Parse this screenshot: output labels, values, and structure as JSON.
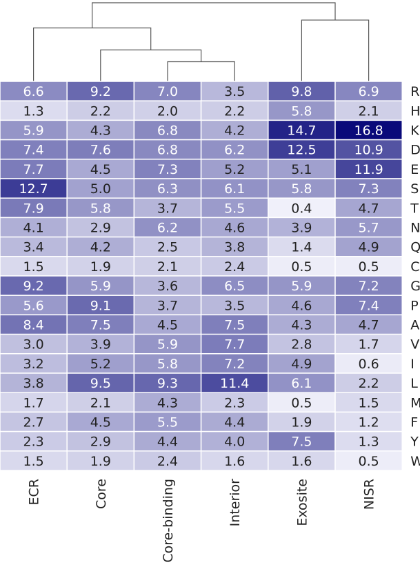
{
  "chart_data": {
    "type": "heatmap",
    "columns": [
      "ECR",
      "Core",
      "Core-binding",
      "Interior",
      "Exosite",
      "NISR"
    ],
    "rows": [
      "R",
      "H",
      "K",
      "D",
      "E",
      "S",
      "T",
      "N",
      "Q",
      "C",
      "G",
      "P",
      "A",
      "V",
      "I",
      "L",
      "M",
      "F",
      "Y",
      "W"
    ],
    "values": [
      [
        6.6,
        9.2,
        7.0,
        3.5,
        9.8,
        6.9
      ],
      [
        1.3,
        2.2,
        2.0,
        2.2,
        5.8,
        2.1
      ],
      [
        5.9,
        4.3,
        6.8,
        4.2,
        14.7,
        16.8
      ],
      [
        7.4,
        7.6,
        6.8,
        6.2,
        12.5,
        10.9
      ],
      [
        7.7,
        4.5,
        7.3,
        5.2,
        5.1,
        11.9
      ],
      [
        12.7,
        5.0,
        6.3,
        6.1,
        5.8,
        7.3
      ],
      [
        7.9,
        5.8,
        3.7,
        5.5,
        0.4,
        4.7
      ],
      [
        4.1,
        2.9,
        6.2,
        4.6,
        3.9,
        5.7
      ],
      [
        3.4,
        4.2,
        2.5,
        3.8,
        1.4,
        4.9
      ],
      [
        1.5,
        1.9,
        2.1,
        2.4,
        0.5,
        0.5
      ],
      [
        9.2,
        5.9,
        3.6,
        6.5,
        5.9,
        7.2
      ],
      [
        5.6,
        9.1,
        3.7,
        3.5,
        4.6,
        7.4
      ],
      [
        8.4,
        7.5,
        4.5,
        7.5,
        4.3,
        4.7
      ],
      [
        3.0,
        3.9,
        5.9,
        7.7,
        2.8,
        1.7
      ],
      [
        3.2,
        5.2,
        5.8,
        7.2,
        4.9,
        0.6
      ],
      [
        3.8,
        9.5,
        9.3,
        11.4,
        6.1,
        2.2
      ],
      [
        1.7,
        2.1,
        4.3,
        2.3,
        0.5,
        1.5
      ],
      [
        2.7,
        4.5,
        5.5,
        4.4,
        1.9,
        1.2
      ],
      [
        2.3,
        2.9,
        4.4,
        4.0,
        7.5,
        1.3
      ],
      [
        1.5,
        1.9,
        2.4,
        1.6,
        1.6,
        0.5
      ]
    ],
    "colormap": {
      "low": "#f0f0fa",
      "high": "#0a0a7a"
    },
    "value_range": [
      0.4,
      16.8
    ],
    "dendrogram": {
      "leaves": [
        "ECR",
        "Core",
        "Core-binding",
        "Interior",
        "Exosite",
        "NISR"
      ],
      "merges": [
        {
          "left": "Core-binding",
          "right": "Interior",
          "height": 0.25
        },
        {
          "left": "Core",
          "right": "Core-binding+Interior",
          "height": 0.4
        },
        {
          "left": "ECR",
          "right": "Core+Core-binding+Interior",
          "height": 0.68
        },
        {
          "left": "Exosite",
          "right": "NISR",
          "height": 0.78
        },
        {
          "left": "ECR+Core+Core-binding+Interior",
          "right": "Exosite+NISR",
          "height": 1.0
        }
      ],
      "line_color": "#555555"
    },
    "label_dark_color": "#222222",
    "label_light_color": "#ffffff"
  }
}
